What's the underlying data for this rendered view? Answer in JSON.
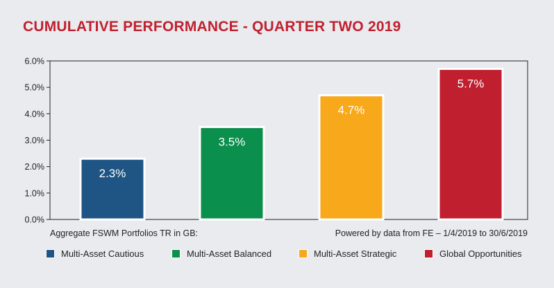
{
  "title": "CUMULATIVE PERFORMANCE - QUARTER TWO 2019",
  "note_left": "Aggregate FSWM Portfolios TR in GB:",
  "note_right": "Powered by data from FE – 1/4/2019 to 30/6/2019",
  "chart_data": {
    "type": "bar",
    "title": "CUMULATIVE PERFORMANCE - QUARTER TWO 2019",
    "xlabel": "",
    "ylabel": "",
    "categories": [
      "Multi-Asset Cautious",
      "Multi-Asset Balanced",
      "Multi-Asset Strategic",
      "Global Opportunities"
    ],
    "values": [
      2.3,
      3.5,
      4.7,
      5.7
    ],
    "value_labels": [
      "2.3%",
      "3.5%",
      "4.7%",
      "5.7%"
    ],
    "colors": [
      "#1f5584",
      "#0b8f4d",
      "#f7a81b",
      "#c01f2f"
    ],
    "ylim": [
      0,
      6
    ],
    "yticks": [
      0,
      1,
      2,
      3,
      4,
      5,
      6
    ],
    "ytick_labels": [
      "0.0%",
      "1.0%",
      "2.0%",
      "3.0%",
      "4.0%",
      "5.0%",
      "6.0%"
    ],
    "legend_position": "bottom",
    "grid": false
  }
}
